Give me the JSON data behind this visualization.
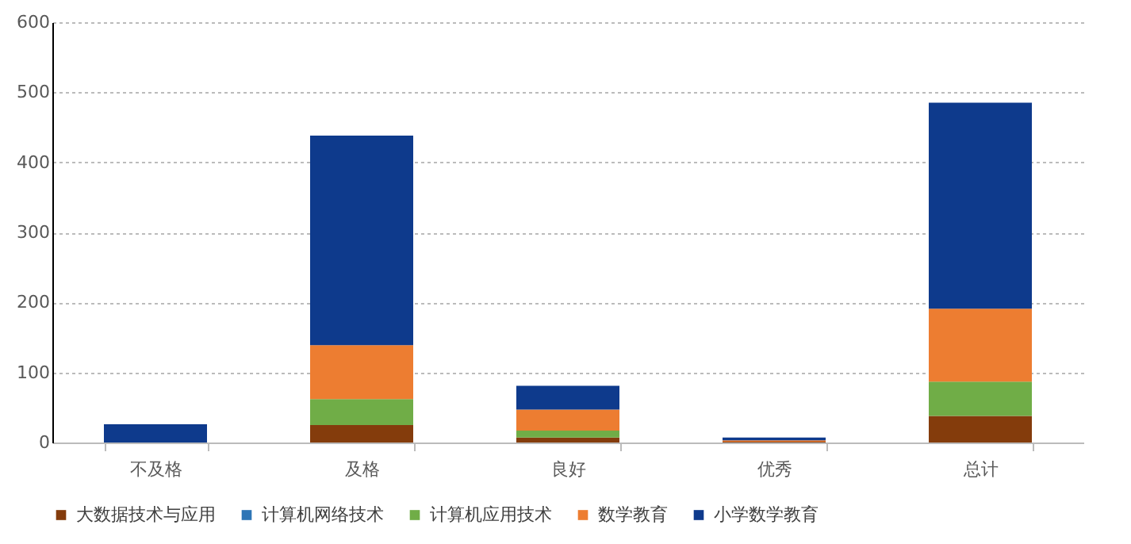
{
  "chart_data": {
    "type": "bar",
    "stacked": true,
    "categories": [
      "不及格",
      "及格",
      "良好",
      "优秀",
      "总计"
    ],
    "series": [
      {
        "name": "大数据技术与应用",
        "color": "#843c0c",
        "values": [
          0,
          25,
          7,
          1,
          38
        ]
      },
      {
        "name": "计算机网络技术",
        "color": "#2e75b6",
        "values": [
          0,
          0,
          0,
          0,
          0
        ]
      },
      {
        "name": "计算机应用技术",
        "color": "#70ad47",
        "values": [
          0,
          37,
          10,
          0,
          49
        ]
      },
      {
        "name": "数学教育",
        "color": "#ed7d31",
        "values": [
          0,
          77,
          30,
          2,
          104
        ]
      },
      {
        "name": "小学数学教育",
        "color": "#0e3a8c",
        "values": [
          26,
          299,
          34,
          4,
          294
        ]
      }
    ],
    "ylim": [
      0,
      600
    ],
    "yticks": [
      0,
      100,
      200,
      300,
      400,
      500,
      600
    ],
    "grid": "y",
    "legend": "bottom"
  }
}
